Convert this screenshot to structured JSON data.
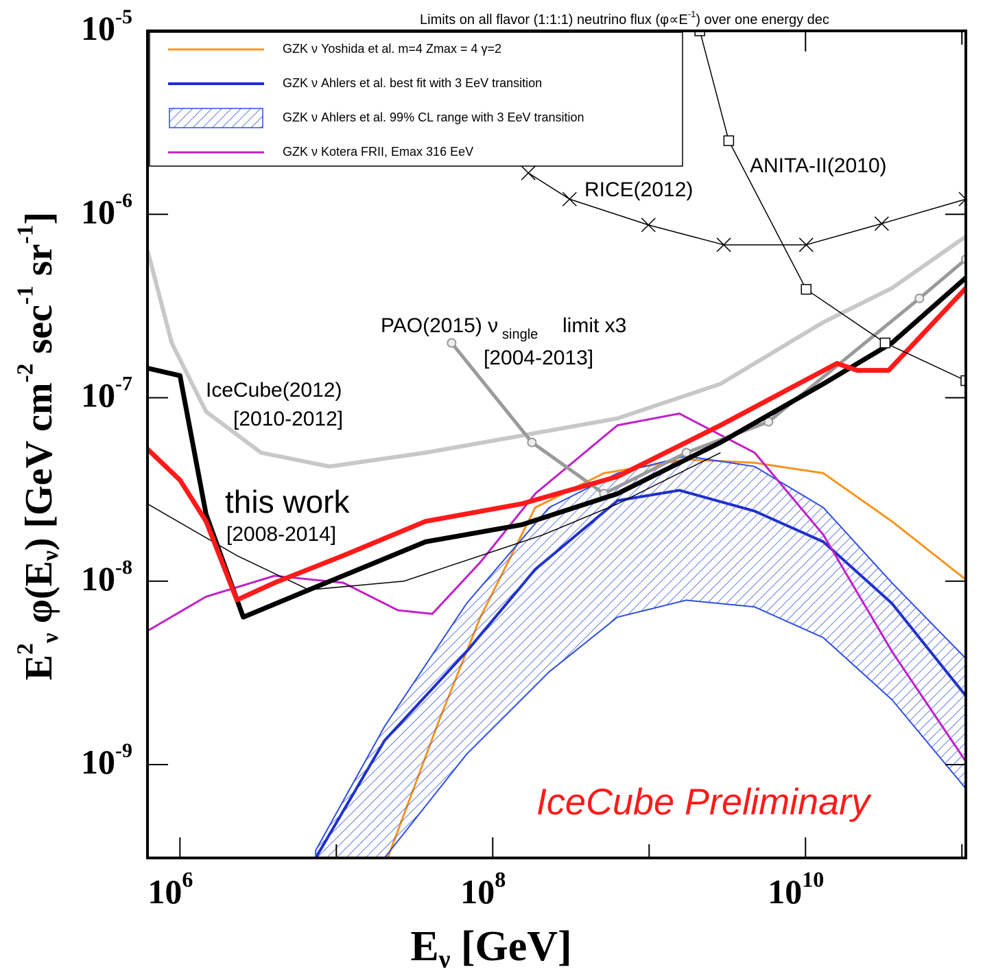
{
  "chart_data": {
    "type": "line",
    "title": [
      "Limits on all flavor (1:1:1) neutrino flux (φ∝E",
      "-1",
      ") over one energy dec"
    ],
    "x_label": [
      {
        "text": "E"
      },
      {
        "text": "ν",
        "sub": true
      },
      {
        "text": " [GeV]"
      }
    ],
    "y_label": [
      {
        "text": "E"
      },
      {
        "text": "2",
        "sup": true
      },
      {
        "text": "ν",
        "sub": true
      },
      {
        "text": "  φ(E"
      },
      {
        "text": "ν",
        "sub": true
      },
      {
        "text": ") [GeV cm"
      },
      {
        "text": "-2",
        "sup": true
      },
      {
        "text": " sec"
      },
      {
        "text": "-1",
        "sup": true
      },
      {
        "text": " sr"
      },
      {
        "text": "-1",
        "sup": true
      },
      {
        "text": "]"
      }
    ],
    "xscale": "log",
    "yscale": "log",
    "xlim": [
      620000,
      106000000000
    ],
    "ylim": [
      3.1e-10,
      1e-05
    ],
    "xticks": [
      {
        "value": 1000000,
        "label": "10",
        "power": "6"
      },
      {
        "value": 100000000,
        "label": "10",
        "power": "8"
      },
      {
        "value": 10000000000,
        "label": "10",
        "power": "10"
      }
    ],
    "xminor": [
      10000000,
      1000000000,
      100000000000
    ],
    "yticks": [
      {
        "value": 1e-09,
        "label": "10",
        "power": "-9"
      },
      {
        "value": 1e-08,
        "label": "10",
        "power": "-8"
      },
      {
        "value": 1e-07,
        "label": "10",
        "power": "-7"
      },
      {
        "value": 1e-06,
        "label": "10",
        "power": "-6"
      },
      {
        "value": 1e-05,
        "label": "10",
        "power": "-5"
      }
    ],
    "legend": "upper left",
    "series": [
      {
        "name": "GZK ν  Yoshida et al. m=4 Zmax = 4 γ=2",
        "color": "#f7941d",
        "width": 3,
        "x": [
          21300000,
          45500000,
          83400000,
          187000000,
          514000000,
          1730000000,
          4730000000,
          13000000000,
          35700000000,
          106000000000
        ],
        "values": [
          3.1e-10,
          1.75e-09,
          6.37e-09,
          2.52e-08,
          3.88e-08,
          4.61e-08,
          4.42e-08,
          3.88e-08,
          2.12e-08,
          1.02e-08
        ]
      },
      {
        "name": "GZK ν  Ahlers et al. best fit with 3 EeV transition",
        "color": "#1f2fc8",
        "width": 4,
        "x": [
          7380000,
          20300000,
          68100000,
          187000000,
          628000000,
          1560000000,
          4730000000,
          13000000000,
          35700000000,
          106000000000
        ],
        "values": [
          3.1e-10,
          1.35e-09,
          4.14e-09,
          1.16e-08,
          2.75e-08,
          3.13e-08,
          2.41e-08,
          1.64e-08,
          7.57e-09,
          2.37e-09
        ]
      },
      {
        "name": "GZK ν  Ahlers et al. 99% CL range with 3 EeV transition",
        "color": "#2f4fe0",
        "kind": "band",
        "x": [
          7380000,
          20300000,
          68100000,
          229000000,
          628000000,
          1730000000,
          4730000000,
          13000000000,
          35700000000,
          106000000000
        ],
        "upper": [
          3.41e-10,
          1.61e-09,
          7.57e-09,
          2.52e-08,
          3.88e-08,
          4.81e-08,
          4.22e-08,
          2.52e-08,
          9.8e-09,
          3.79e-09
        ],
        "lower": [
          1.5e-10,
          3.1e-10,
          1.14e-09,
          3.2e-09,
          6.37e-09,
          7.88e-09,
          7.24e-09,
          4.92e-09,
          2.26e-09,
          7.4e-10
        ]
      },
      {
        "name": "GZK ν  Kotera FRII, Emax 316 EeV",
        "color": "#c020c8",
        "width": 3,
        "x": [
          620000,
          1470000,
          4020000,
          11100000,
          24800000,
          41100000,
          83400000,
          187000000,
          628000000,
          1560000000,
          4730000000,
          13000000000,
          35700000000,
          106000000000
        ],
        "values": [
          5.36e-09,
          8.24e-09,
          1.07e-08,
          9.8e-09,
          6.94e-09,
          6.64e-09,
          1.27e-08,
          3e-08,
          7.08e-08,
          8.2e-08,
          5.02e-08,
          1.79e-08,
          4.14e-09,
          1.04e-09
        ]
      },
      {
        "color": "#000000",
        "width": 1.5,
        "x": [
          620000,
          2310000,
          6680000,
          27000000,
          210000000,
          628000000,
          2860000000
        ],
        "values": [
          2.64e-08,
          1.38e-08,
          8.97e-09,
          1e-08,
          1.79e-08,
          2.64e-08,
          5.02e-08
        ]
      },
      {
        "color": "#c8c8c8",
        "width": 6,
        "x": [
          620000,
          886000,
          1470000,
          3300000,
          9040000,
          37200000,
          153000000,
          628000000,
          2860000000,
          13000000000,
          35700000000,
          106000000000
        ],
        "values": [
          6.37e-07,
          1.99e-07,
          8.4e-08,
          5.02e-08,
          4.22e-08,
          5.02e-08,
          6.22e-08,
          7.72e-08,
          1.19e-07,
          2.58e-07,
          3.96e-07,
          7.57e-07
        ]
      },
      {
        "color": "#9a9a9a",
        "width": 5,
        "marker": "circle",
        "x": [
          54600000,
          178000000,
          514000000,
          1730000000,
          5800000000,
          53500000000,
          106000000000
        ],
        "values": [
          1.99e-07,
          5.71e-08,
          3e-08,
          5.02e-08,
          7.4e-08,
          3.48e-07,
          5.69e-07
        ]
      },
      {
        "color": "#000000",
        "width": 7,
        "x": [
          620000,
          1000000,
          1470000,
          2540000,
          6680000,
          37200000,
          153000000,
          628000000,
          2860000000,
          13000000000,
          35700000000,
          106000000000
        ],
        "values": [
          1.45e-07,
          1.32e-07,
          2.31e-08,
          6.37e-09,
          8.97e-09,
          1.64e-08,
          2.03e-08,
          3e-08,
          5.71e-08,
          1.19e-07,
          1.99e-07,
          4.51e-07
        ]
      },
      {
        "color": "#ff1a1a",
        "width": 7,
        "x": [
          620000,
          1000000,
          1470000,
          2310000,
          4020000,
          11100000,
          37200000,
          153000000,
          628000000,
          2860000000,
          15900000000,
          21500000000,
          34000000000,
          106000000000
        ],
        "values": [
          5.25e-08,
          3.56e-08,
          2.12e-08,
          7.9e-09,
          9.8e-09,
          1.38e-08,
          2.12e-08,
          2.64e-08,
          3.72e-08,
          7.08e-08,
          1.54e-07,
          1.41e-07,
          1.41e-07,
          3.96e-07
        ]
      },
      {
        "color": "#000000",
        "width": 1.5,
        "marker": "cross",
        "x": [
          169000000,
          310000000,
          990000000,
          3000000000,
          10100000000,
          30700000000,
          106000000000
        ],
        "values": [
          1.68e-06,
          1.21e-06,
          8.75e-07,
          6.82e-07,
          6.82e-07,
          8.9e-07,
          1.21e-06
        ]
      },
      {
        "color": "#000000",
        "width": 1.5,
        "marker": "square",
        "x": [
          2110000000,
          3230000000,
          10100000000,
          32300000000,
          106000000000
        ],
        "values": [
          1e-05,
          2.52e-06,
          3.9e-07,
          1.99e-07,
          1.24e-07
        ]
      }
    ],
    "annotations": [
      {
        "text": "IceCube(2012)",
        "color": "#000000"
      },
      {
        "text": "[2010-2012]",
        "color": "#000000"
      },
      {
        "text": "this work",
        "color": "#000000"
      },
      {
        "text": "[2008-2014]",
        "color": "#000000"
      },
      {
        "text": "PAO(2015) ν",
        "color": "#000000"
      },
      {
        "text": "single",
        "color": "#000000"
      },
      {
        "text": "limit x3",
        "color": "#000000"
      },
      {
        "text": "[2004-2013]",
        "color": "#000000"
      },
      {
        "text": "RICE(2012)",
        "color": "#000000"
      },
      {
        "text": "ANITA-II(2010)",
        "color": "#000000"
      },
      {
        "text": "IceCube Preliminary",
        "color": "#ff1a1a"
      }
    ]
  }
}
